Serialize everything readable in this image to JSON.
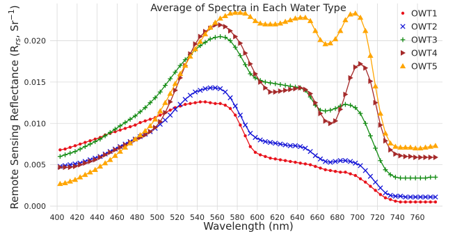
{
  "chart_data": {
    "type": "line",
    "title": "Average of Spectra in Each Water Type",
    "xlabel": "Wavelength (nm)",
    "ylabel": "Remote Sensing Reflectance (R",
    "ylabel_sub": "rs",
    "ylabel_tail": ", Sr",
    "ylabel_sup": "−1",
    "ylabel_close": ")",
    "xlim": [
      393,
      785
    ],
    "ylim": [
      -0.0005,
      0.0245
    ],
    "xticks": [
      400,
      420,
      440,
      460,
      480,
      500,
      520,
      540,
      560,
      580,
      600,
      620,
      640,
      660,
      680,
      700,
      720,
      740,
      760
    ],
    "yticks": [
      0.0,
      0.005,
      0.01,
      0.015,
      0.02
    ],
    "ytick_labels": [
      "0.000",
      "0.005",
      "0.010",
      "0.015",
      "0.020"
    ],
    "grid": true,
    "legend_position": "top-right",
    "x": [
      403,
      408,
      413,
      418,
      423,
      428,
      433,
      438,
      443,
      448,
      453,
      458,
      463,
      468,
      473,
      478,
      483,
      488,
      493,
      498,
      503,
      508,
      513,
      518,
      523,
      528,
      533,
      538,
      543,
      548,
      553,
      558,
      563,
      568,
      573,
      578,
      583,
      588,
      593,
      598,
      603,
      608,
      613,
      618,
      623,
      628,
      633,
      638,
      643,
      648,
      653,
      658,
      663,
      668,
      673,
      678,
      683,
      688,
      693,
      698,
      703,
      708,
      713,
      718,
      723,
      728,
      733,
      738,
      743,
      748,
      753,
      758,
      763,
      768,
      773,
      778
    ],
    "series": [
      {
        "name": "OWT1",
        "color": "#e8121b",
        "marker": "dot",
        "values": [
          0.0068,
          0.0069,
          0.0071,
          0.0073,
          0.0075,
          0.0077,
          0.0079,
          0.0081,
          0.0083,
          0.0086,
          0.0088,
          0.009,
          0.0092,
          0.0094,
          0.0096,
          0.0098,
          0.0101,
          0.0103,
          0.0105,
          0.0107,
          0.011,
          0.0113,
          0.0116,
          0.0119,
          0.0121,
          0.0123,
          0.0124,
          0.0125,
          0.0126,
          0.0126,
          0.0125,
          0.0124,
          0.0124,
          0.0122,
          0.0118,
          0.011,
          0.0098,
          0.0085,
          0.0072,
          0.0065,
          0.0062,
          0.006,
          0.0058,
          0.0057,
          0.0056,
          0.0055,
          0.0054,
          0.0053,
          0.0052,
          0.0051,
          0.005,
          0.0048,
          0.0046,
          0.0044,
          0.0043,
          0.0042,
          0.0041,
          0.0041,
          0.0039,
          0.0037,
          0.0033,
          0.0029,
          0.0024,
          0.0019,
          0.0014,
          0.001,
          0.0008,
          0.0006,
          0.0005,
          0.0005,
          0.0005,
          0.0005,
          0.0005,
          0.0005,
          0.0005,
          0.0005
        ]
      },
      {
        "name": "OWT2",
        "color": "#1414d6",
        "marker": "x",
        "values": [
          0.0048,
          0.0049,
          0.005,
          0.0051,
          0.0052,
          0.0054,
          0.0056,
          0.0058,
          0.006,
          0.0063,
          0.0066,
          0.0069,
          0.0072,
          0.0075,
          0.0078,
          0.0081,
          0.0084,
          0.0087,
          0.009,
          0.0094,
          0.0099,
          0.0104,
          0.011,
          0.0117,
          0.0123,
          0.0129,
          0.0134,
          0.0138,
          0.014,
          0.0142,
          0.0143,
          0.0143,
          0.0142,
          0.0138,
          0.0131,
          0.0121,
          0.011,
          0.0098,
          0.0088,
          0.0083,
          0.008,
          0.0078,
          0.0077,
          0.0076,
          0.0075,
          0.0074,
          0.0073,
          0.0073,
          0.0072,
          0.007,
          0.0066,
          0.0061,
          0.0057,
          0.0054,
          0.0053,
          0.0054,
          0.0055,
          0.0055,
          0.0054,
          0.0052,
          0.0049,
          0.0043,
          0.0036,
          0.0029,
          0.0022,
          0.0016,
          0.0013,
          0.0012,
          0.0012,
          0.0011,
          0.0011,
          0.0011,
          0.0011,
          0.0011,
          0.0011,
          0.0011
        ]
      },
      {
        "name": "OWT3",
        "color": "#118a11",
        "marker": "plus",
        "values": [
          0.006,
          0.0062,
          0.0064,
          0.0066,
          0.0069,
          0.0072,
          0.0075,
          0.0078,
          0.0081,
          0.0085,
          0.0089,
          0.0093,
          0.0097,
          0.0101,
          0.0105,
          0.0109,
          0.0114,
          0.0119,
          0.0125,
          0.0131,
          0.0138,
          0.0146,
          0.0154,
          0.0162,
          0.017,
          0.0177,
          0.0183,
          0.0189,
          0.0194,
          0.0198,
          0.0202,
          0.0204,
          0.0205,
          0.0204,
          0.02,
          0.0192,
          0.0182,
          0.0171,
          0.016,
          0.0155,
          0.0152,
          0.015,
          0.0149,
          0.0148,
          0.0147,
          0.0146,
          0.0145,
          0.0144,
          0.0143,
          0.014,
          0.0132,
          0.0122,
          0.0116,
          0.0115,
          0.0116,
          0.0118,
          0.0121,
          0.0123,
          0.0122,
          0.0119,
          0.0112,
          0.01,
          0.0085,
          0.007,
          0.0055,
          0.0044,
          0.0038,
          0.0035,
          0.0034,
          0.0034,
          0.0034,
          0.0034,
          0.0034,
          0.0034,
          0.0035,
          0.0035
        ]
      },
      {
        "name": "OWT4",
        "color": "#a52a2a",
        "marker": "tri-right",
        "values": [
          0.0047,
          0.0047,
          0.0047,
          0.0048,
          0.005,
          0.0052,
          0.0054,
          0.0056,
          0.0059,
          0.0062,
          0.0065,
          0.0068,
          0.0071,
          0.0074,
          0.0077,
          0.008,
          0.0083,
          0.0086,
          0.009,
          0.0095,
          0.0102,
          0.0113,
          0.0126,
          0.014,
          0.0155,
          0.017,
          0.0184,
          0.0196,
          0.0205,
          0.0211,
          0.0215,
          0.0219,
          0.0219,
          0.0217,
          0.0212,
          0.0205,
          0.0197,
          0.0185,
          0.0172,
          0.016,
          0.015,
          0.0143,
          0.0138,
          0.0138,
          0.0139,
          0.014,
          0.0141,
          0.0142,
          0.0143,
          0.0141,
          0.0136,
          0.0125,
          0.0112,
          0.0103,
          0.01,
          0.0103,
          0.0117,
          0.0135,
          0.0155,
          0.0168,
          0.0172,
          0.0167,
          0.0151,
          0.0125,
          0.0098,
          0.0079,
          0.0068,
          0.0063,
          0.0061,
          0.006,
          0.006,
          0.0059,
          0.0059,
          0.0059,
          0.0059,
          0.0059
        ]
      },
      {
        "name": "OWT5",
        "color": "#ffa500",
        "marker": "tri-up",
        "values": [
          0.0027,
          0.0028,
          0.003,
          0.0032,
          0.0035,
          0.0038,
          0.0041,
          0.0044,
          0.0048,
          0.0052,
          0.0056,
          0.0061,
          0.0066,
          0.0071,
          0.0076,
          0.0081,
          0.0086,
          0.0091,
          0.0097,
          0.0105,
          0.0115,
          0.0125,
          0.0136,
          0.0148,
          0.016,
          0.017,
          0.0181,
          0.019,
          0.0199,
          0.0208,
          0.0216,
          0.0222,
          0.0227,
          0.023,
          0.0233,
          0.0234,
          0.0234,
          0.0233,
          0.0229,
          0.0224,
          0.0221,
          0.022,
          0.022,
          0.022,
          0.0221,
          0.0223,
          0.0225,
          0.0227,
          0.0228,
          0.0228,
          0.0224,
          0.0212,
          0.0201,
          0.0196,
          0.0197,
          0.0202,
          0.0212,
          0.0225,
          0.0232,
          0.0233,
          0.0228,
          0.0212,
          0.0182,
          0.0145,
          0.0112,
          0.0088,
          0.0076,
          0.0072,
          0.0071,
          0.0071,
          0.0071,
          0.007,
          0.007,
          0.0071,
          0.0072,
          0.0073
        ]
      }
    ]
  }
}
